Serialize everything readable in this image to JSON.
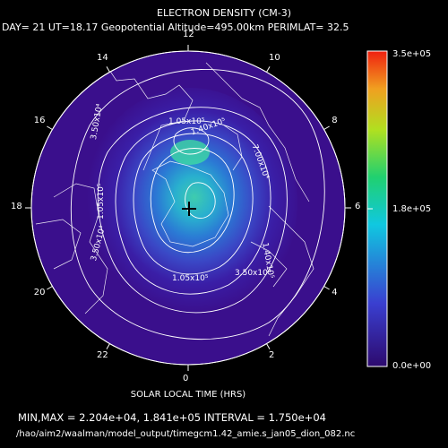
{
  "title": "ELECTRON DENSITY (CM-3)",
  "subtitle": "DAY= 21 UT=18.17 Geopotential Altitude=495.00km PERIMLAT= 32.5",
  "xlabel": "SOLAR LOCAL TIME (HRS)",
  "minmax_text": "MIN,MAX =  2.204e+04, 1.841e+05 INTERVAL =  1.750e+04",
  "file_path": "/hao/aim2/waalman/model_output/timegcm1.42_amie.s_jan05_dion_082.nc",
  "local_time_labels": [
    "12",
    "14",
    "16",
    "18",
    "20",
    "22",
    "0",
    "2",
    "4",
    "6",
    "8",
    "10"
  ],
  "colorbar": {
    "max_label": "3.5e+05",
    "mid_label": "1.8e+05",
    "min_label": "0.0e+00"
  },
  "contour_labels": [
    "1.05x10⁵",
    "1.40x10⁵",
    "7.00x10⁴",
    "3.50x10⁴",
    "3.50x10⁴",
    "1.05x10⁵",
    "1.05x10⁵",
    "1.40x10⁵",
    "3.50x10⁴"
  ],
  "colors": {
    "background": "#000000",
    "field_low": "#3a0f8c",
    "contour": "#ffffff"
  }
}
